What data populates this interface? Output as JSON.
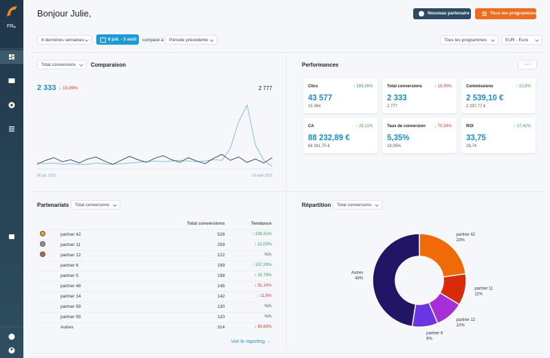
{
  "sidebar": {
    "lang": "FR"
  },
  "header": {
    "greeting": "Bonjour Julie,",
    "new_partner": "Nouveau partenaire",
    "all_programs": "Tous les programmes"
  },
  "filters": {
    "period": "4 dernières semaines",
    "range": "6 juil. - 3 août",
    "compared": "comparé à",
    "compare_period": "Période précédente",
    "programs": "Tous les programmes",
    "currency": "EUR - Euro"
  },
  "comparison": {
    "select": "Total conversions",
    "title": "Comparaison",
    "current": "2 333",
    "change": "↓ 15,99%",
    "trend": "down",
    "previous": "2 777",
    "chart": {
      "type": "line",
      "categories": [
        "06 juil. 2022",
        null,
        null,
        null,
        null,
        null,
        null,
        null,
        null,
        null,
        null,
        null,
        null,
        null,
        null,
        null,
        null,
        null,
        null,
        null,
        null,
        null,
        null,
        null,
        null,
        null,
        null,
        null,
        "03 août 2022"
      ],
      "series": [
        {
          "color": "#3a4a5a",
          "values": [
            6,
            12,
            16,
            10,
            13,
            8,
            14,
            17,
            11,
            6,
            12,
            18,
            13,
            9,
            15,
            19,
            13,
            9,
            16,
            11,
            7,
            15,
            21,
            12,
            17,
            9,
            14,
            8,
            16
          ]
        },
        {
          "color": "#7fbfe0",
          "values": [
            9,
            7,
            8,
            6,
            7,
            6,
            6,
            8,
            7,
            6,
            7,
            8,
            9,
            10,
            11,
            10,
            11,
            12,
            11,
            10,
            11,
            13,
            12,
            30,
            70,
            95,
            35,
            12,
            3
          ]
        }
      ],
      "ylim": [
        0,
        100
      ]
    }
  },
  "performance": {
    "title": "Performances",
    "menu": "···",
    "cards": [
      {
        "label": "Clics",
        "change": "↑ 183,26%",
        "trend": "up",
        "value": "43 577",
        "previous": "15 384"
      },
      {
        "label": "Total conversions",
        "change": "↓ 15,99%",
        "trend": "down",
        "value": "2 333",
        "previous": "2 777"
      },
      {
        "label": "Commissions",
        "change": "↑ 10,5%",
        "trend": "up",
        "value": "2 539,10 €",
        "previous": "2 297,77 €"
      },
      {
        "label": "CA",
        "change": "↑ 29,11%",
        "trend": "up",
        "value": "88 232,89 €",
        "previous": "68 341,75 €"
      },
      {
        "label": "Taux de conversion",
        "change": "↓ 70,34%",
        "trend": "down",
        "value": "5,35%",
        "previous": "18,05%"
      },
      {
        "label": "ROI",
        "change": "↑ 17,42%",
        "trend": "up",
        "value": "33,75",
        "previous": "28,74"
      }
    ]
  },
  "partners": {
    "title": "Partenariats",
    "select": "Total conversions",
    "columns": [
      "Total conversions",
      "Tendance"
    ],
    "rows": [
      {
        "name": "partner 42",
        "conversions": "528",
        "trend_label": "↑ 236,31%",
        "trend": "up"
      },
      {
        "name": "partner 11",
        "conversions": "259",
        "trend_label": "↑ 21,03%",
        "trend": "up"
      },
      {
        "name": "partner 12",
        "conversions": "222",
        "trend_label": "N/A",
        "trend": "na"
      },
      {
        "name": "partner 6",
        "conversions": "199",
        "trend_label": "↑ 107,29%",
        "trend": "up"
      },
      {
        "name": "partner 5",
        "conversions": "198",
        "trend_label": "↑ 15,79%",
        "trend": "up"
      },
      {
        "name": "partner 48",
        "conversions": "145",
        "trend_label": "↓ 91,16%",
        "trend": "down"
      },
      {
        "name": "partner 14",
        "conversions": "142",
        "trend_label": "↓ 11,8%",
        "trend": "down"
      },
      {
        "name": "partner 59",
        "conversions": "130",
        "trend_label": "N/A",
        "trend": "na"
      },
      {
        "name": "partner 55",
        "conversions": "120",
        "trend_label": "N/A",
        "trend": "na"
      },
      {
        "name": "Autres",
        "conversions": "314",
        "trend_label": "↓ 89,69%",
        "trend": "down"
      }
    ],
    "link": "Voir le reporting →"
  },
  "repartition": {
    "title": "Répartition",
    "select": "Total conversions",
    "chart": {
      "type": "pie",
      "categories": [
        "partner 42",
        "partner 11",
        "partner 12",
        "partner 6",
        "Autres"
      ],
      "values": [
        23,
        11,
        10,
        9,
        48
      ],
      "value_labels": [
        "23%",
        "11%",
        "10%",
        "9%",
        "48%"
      ],
      "colors": [
        "#f06a0a",
        "#d92a0c",
        "#a630d8",
        "#6a35e2",
        "#231566"
      ]
    }
  }
}
